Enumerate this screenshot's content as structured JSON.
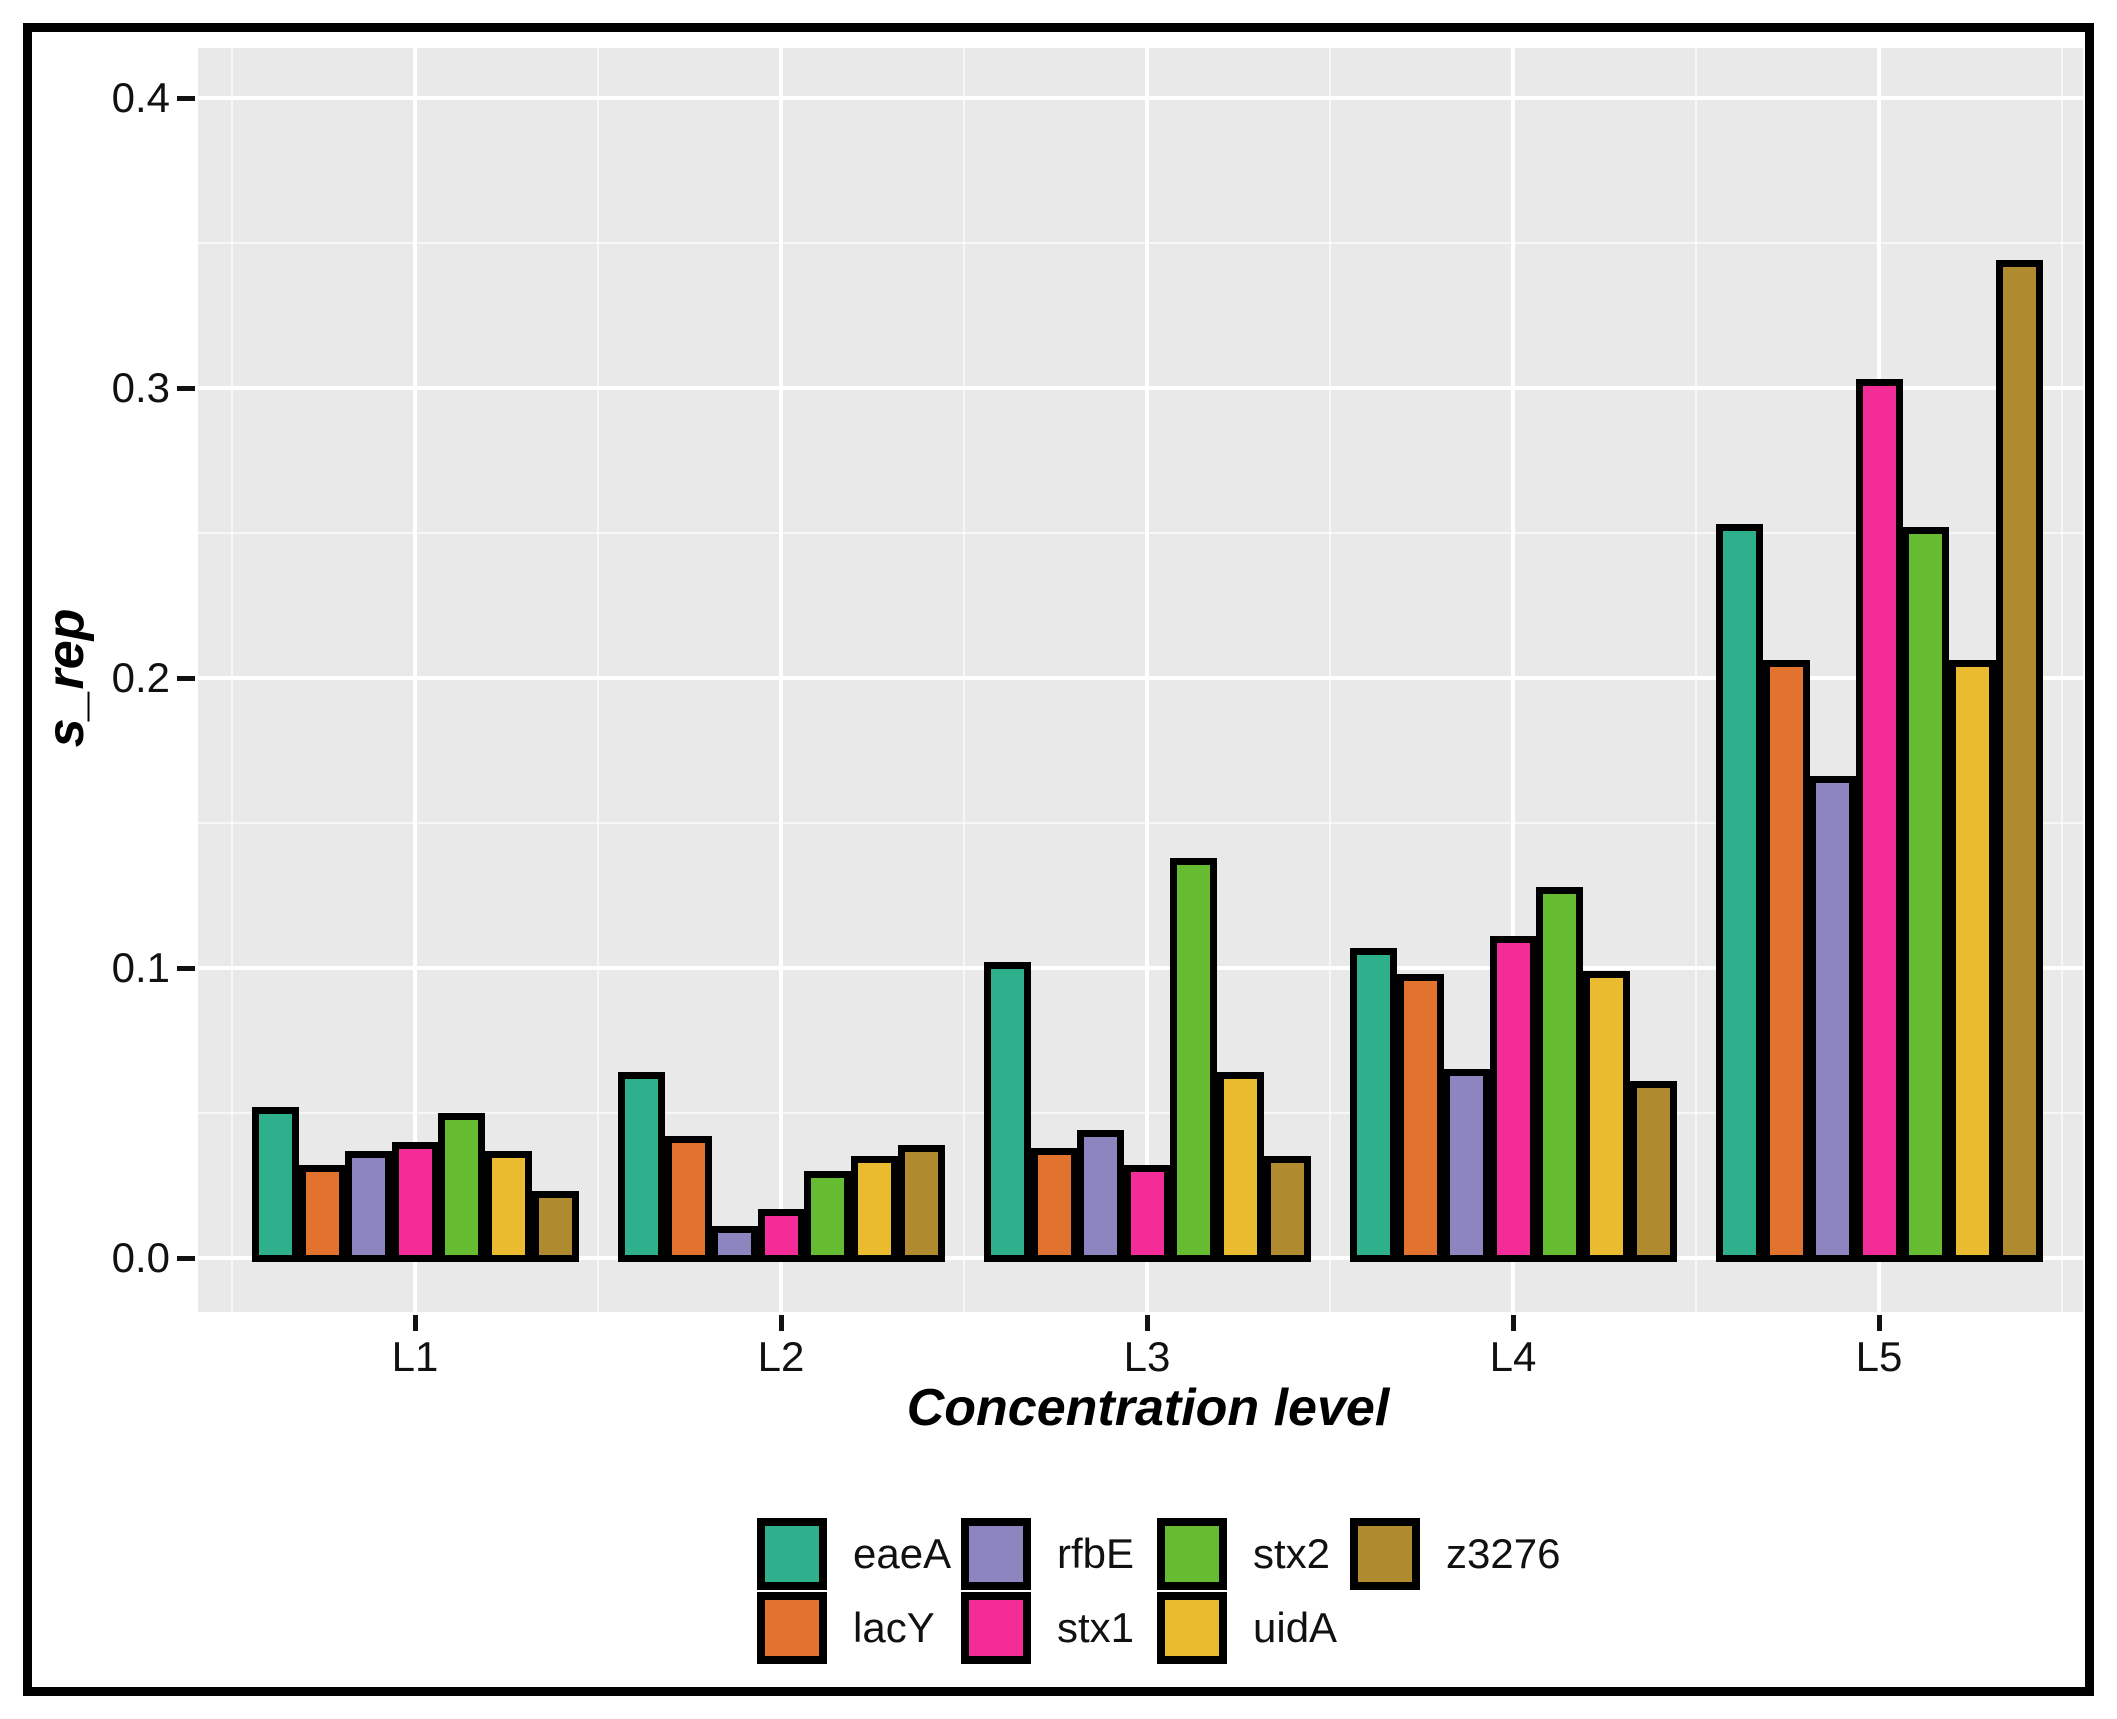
{
  "chart_data": {
    "type": "bar",
    "title": "",
    "xlabel": "Concentration level",
    "ylabel": "s_rep",
    "categories": [
      "L1",
      "L2",
      "L3",
      "L4",
      "L5"
    ],
    "series": [
      {
        "name": "eaeA",
        "color": "#2FB08D",
        "values": [
          0.051,
          0.063,
          0.101,
          0.106,
          0.252
        ]
      },
      {
        "name": "lacY",
        "color": "#E2732F",
        "values": [
          0.031,
          0.041,
          0.037,
          0.097,
          0.205
        ]
      },
      {
        "name": "rfbE",
        "color": "#8D85C0",
        "values": [
          0.036,
          0.01,
          0.043,
          0.064,
          0.165
        ]
      },
      {
        "name": "stx1",
        "color": "#F32C98",
        "values": [
          0.039,
          0.016,
          0.031,
          0.11,
          0.302
        ]
      },
      {
        "name": "stx2",
        "color": "#66BC30",
        "values": [
          0.049,
          0.029,
          0.137,
          0.127,
          0.251
        ]
      },
      {
        "name": "uidA",
        "color": "#EABB2E",
        "values": [
          0.036,
          0.034,
          0.063,
          0.098,
          0.205
        ]
      },
      {
        "name": "z3276",
        "color": "#B08A2E",
        "values": [
          0.022,
          0.038,
          0.034,
          0.06,
          0.343
        ]
      }
    ],
    "y_ticks": [
      "0.0",
      "0.1",
      "0.2",
      "0.3",
      "0.4"
    ],
    "ylim": [
      -0.019,
      0.417
    ],
    "grid": {
      "major": "0.1 steps white",
      "minor": "0.05 steps white",
      "panel_bg": "#e9e9e9"
    },
    "legend_position": "bottom",
    "legend_columns": 4,
    "bar_outline_color": "#000000"
  }
}
